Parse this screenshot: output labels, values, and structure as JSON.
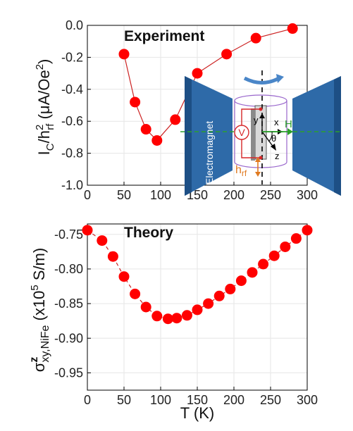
{
  "chart_data": [
    {
      "type": "line",
      "title": "Experiment",
      "xlabel": "",
      "ylabel_main": "I",
      "ylabel_sub1": "C",
      "ylabel_mid": "/h",
      "ylabel_sup": "2",
      "ylabel_sub2": "rf",
      "ylabel_tail": " (μA/Oe",
      "ylabel_sup2": "2",
      "ylabel_end": ")",
      "xlim": [
        0,
        300
      ],
      "ylim": [
        -1.0,
        0.0
      ],
      "xticks": [
        "0",
        "50",
        "100",
        "150",
        "200",
        "250",
        "300"
      ],
      "yticks": [
        "0.0",
        "-0.2",
        "-0.4",
        "-0.6",
        "-0.8",
        "-1.0"
      ],
      "marker_color": "#ff0000",
      "line_color": "#cc2222",
      "grid": true,
      "series": [
        {
          "x": [
            50,
            65,
            80,
            95,
            120,
            150,
            190,
            230,
            280
          ],
          "y": [
            -0.18,
            -0.48,
            -0.65,
            -0.72,
            -0.59,
            -0.3,
            -0.18,
            -0.08,
            -0.02
          ]
        }
      ]
    },
    {
      "type": "line",
      "title": "Theory",
      "xlabel": "T (K)",
      "ylabel_sigma": "σ",
      "ylabel_sup": "z",
      "ylabel_sub": "xy,NiFe",
      "ylabel_tail1": " (x10",
      "ylabel_sup2": "5",
      "ylabel_tail2": " S/m)",
      "xlim": [
        0,
        300
      ],
      "ylim": [
        -0.975,
        -0.735
      ],
      "xticks": [
        "0",
        "50",
        "100",
        "150",
        "200",
        "250",
        "300"
      ],
      "yticks": [
        "-0.75",
        "-0.80",
        "-0.85",
        "-0.90",
        "-0.95"
      ],
      "ytick_values": [
        -0.75,
        -0.8,
        -0.85,
        -0.9,
        -0.95
      ],
      "marker_color": "#ff0000",
      "line_color": "#cc2222",
      "grid": true,
      "series": [
        {
          "x": [
            0,
            20,
            35,
            50,
            65,
            80,
            95,
            110,
            122,
            136,
            150,
            165,
            180,
            195,
            210,
            225,
            240,
            255,
            270,
            285,
            300
          ],
          "y": [
            -0.744,
            -0.759,
            -0.782,
            -0.811,
            -0.836,
            -0.855,
            -0.868,
            -0.872,
            -0.871,
            -0.867,
            -0.859,
            -0.85,
            -0.839,
            -0.829,
            -0.817,
            -0.805,
            -0.793,
            -0.781,
            -0.768,
            -0.756,
            -0.744
          ]
        }
      ]
    }
  ],
  "inset": {
    "electromagnet_label": "Electromagnet",
    "voltmeter_label": "V",
    "y_label": "y",
    "x_label": "x",
    "z_label": "z",
    "theta_label": "θ",
    "h_label": "H",
    "hrf_label": "h",
    "hrf_sub": "rf",
    "pole_color": "#2e6aa8",
    "field_color": "#2ca02c",
    "hrf_color": "#e07a20",
    "voltmeter_color": "#d62728",
    "coil_color": "#9966cc",
    "rotation_arrow_color": "#4a86c8"
  }
}
